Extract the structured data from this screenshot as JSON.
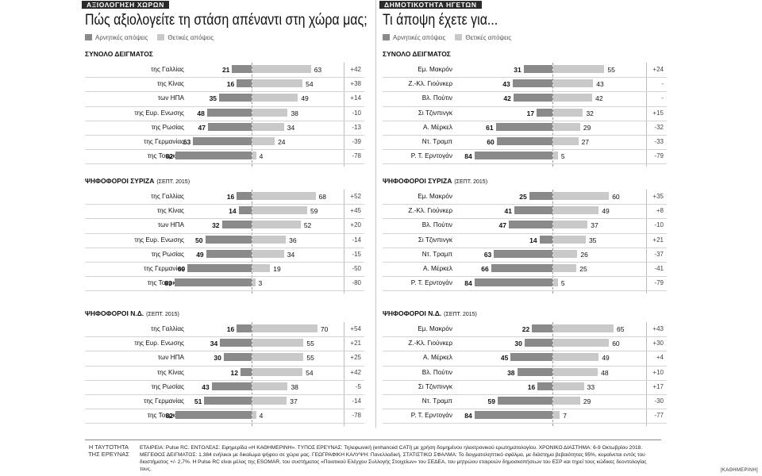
{
  "colors": {
    "negative": "#8a8a8a",
    "positive": "#c9c9c9"
  },
  "chart_data": [
    {
      "type": "bar",
      "section_tag": "ΑΞΙΟΛΟΓΗΣΗ ΧΩΡΩΝ",
      "title": "Πώς αξιολογείτε τη στάση απέναντι στη χώρα μας;",
      "legend": [
        "Αρνητικές απόψεις",
        "Θετικές απόψεις"
      ],
      "groups": [
        {
          "title": "ΣΥΝΟΛΟ ΔΕΙΓΜΑΤΟΣ",
          "note": "",
          "categories": [
            "της Γαλλίας",
            "της Κίνας",
            "των ΗΠΑ",
            "της Ευρ. Ενωσης",
            "της Ρωσίας",
            "της Γερμανίας",
            "της Τουρκίας"
          ],
          "negative": [
            21,
            16,
            35,
            48,
            47,
            63,
            82
          ],
          "positive": [
            63,
            54,
            49,
            38,
            34,
            24,
            4
          ],
          "diff": [
            "+42",
            "+38",
            "+14",
            "-10",
            "-13",
            "-39",
            "-78"
          ]
        },
        {
          "title": "ΨΗΦΟΦΟΡΟΙ ΣΥΡΙΖΑ",
          "note": "(ΣΕΠΤ. 2015)",
          "categories": [
            "της Γαλλίας",
            "της Κίνας",
            "των ΗΠΑ",
            "της Ευρ. Ενωσης",
            "της Ρωσίας",
            "της Γερμανίας",
            "της Τουρκίας"
          ],
          "negative": [
            16,
            14,
            32,
            50,
            49,
            69,
            83
          ],
          "positive": [
            68,
            59,
            52,
            36,
            34,
            19,
            3
          ],
          "diff": [
            "+52",
            "+45",
            "+20",
            "-14",
            "-15",
            "-50",
            "-80"
          ]
        },
        {
          "title": "ΨΗΦΟΦΟΡΟΙ Ν.Δ.",
          "note": "(ΣΕΠΤ. 2015)",
          "categories": [
            "της Γαλλίας",
            "της Ευρ. Ενωσης",
            "των ΗΠΑ",
            "της Κίνας",
            "της Ρωσίας",
            "της Γερμανίας",
            "της Τουρκίας"
          ],
          "negative": [
            16,
            34,
            30,
            12,
            43,
            51,
            82
          ],
          "positive": [
            70,
            55,
            55,
            54,
            38,
            37,
            4
          ],
          "diff": [
            "+54",
            "+21",
            "+25",
            "+42",
            "-5",
            "-14",
            "-78"
          ]
        }
      ]
    },
    {
      "type": "bar",
      "section_tag": "ΔΗΜΟΤΙΚΟΤΗΤΑ ΗΓΕΤΩΝ",
      "title": "Τι άποψη έχετε για...",
      "legend": [
        "Αρνητικές απόψεις",
        "Θετικές απόψεις"
      ],
      "groups": [
        {
          "title": "ΣΥΝΟΛΟ ΔΕΙΓΜΑΤΟΣ",
          "note": "",
          "categories": [
            "Εμ. Μακρόν",
            "Ζ.-Κλ. Γιούνκερ",
            "Βλ. Πούτιν",
            "Σι Τζινπινγκ",
            "Α. Μέρκελ",
            "Ντ. Τραμπ",
            "Ρ. Τ. Ερντογάν"
          ],
          "negative": [
            31,
            43,
            42,
            17,
            61,
            60,
            84
          ],
          "positive": [
            55,
            43,
            42,
            32,
            29,
            27,
            5
          ],
          "diff": [
            "+24",
            "-",
            "-",
            "+15",
            "-32",
            "-33",
            "-79"
          ]
        },
        {
          "title": "ΨΗΦΟΦΟΡΟΙ ΣΥΡΙΖΑ",
          "note": "(ΣΕΠΤ. 2015)",
          "categories": [
            "Εμ. Μακρόν",
            "Ζ.-Κλ. Γιούνκερ",
            "Βλ. Πούτιν",
            "Σι Τζινπινγκ",
            "Ντ. Τραμπ",
            "Α. Μέρκελ",
            "Ρ. Τ. Ερντογάν"
          ],
          "negative": [
            25,
            41,
            47,
            14,
            63,
            66,
            84
          ],
          "positive": [
            60,
            49,
            37,
            35,
            26,
            25,
            5
          ],
          "diff": [
            "+35",
            "+8",
            "-10",
            "+21",
            "-37",
            "-41",
            "-79"
          ]
        },
        {
          "title": "ΨΗΦΟΦΟΡΟΙ Ν.Δ.",
          "note": "(ΣΕΠΤ. 2015)",
          "categories": [
            "Εμ. Μακρόν",
            "Ζ.-Κλ. Γιούνκερ",
            "Α. Μέρκελ",
            "Βλ. Πούτιν",
            "Σι Τζινπινγκ",
            "Ντ. Τραμπ",
            "Ρ. Τ. Ερντογάν"
          ],
          "negative": [
            22,
            30,
            45,
            38,
            16,
            59,
            84
          ],
          "positive": [
            65,
            60,
            49,
            48,
            33,
            29,
            7
          ],
          "diff": [
            "+43",
            "+30",
            "+4",
            "+10",
            "+17",
            "-30",
            "-77"
          ]
        }
      ]
    }
  ],
  "footer": {
    "tag": "Η ΤΑΥΤΟΤΗΤΑ ΤΗΣ ΕΡΕΥΝΑΣ",
    "text": "ΕΤΑΙΡΕΙΑ: Pulse RC. ΕΝΤΟΛΕΑΣ: Εφημερίδα «Η ΚΑΘΗΜΕΡΙΝΗ». ΤΥΠΟΣ ΕΡΕΥΝΑΣ: Τηλεφωνική (enhanced CATI) με χρήση δομημένου ηλεκτρονικού ερωτηματολογίου. ΧΡΟΝΙΚΟ ΔΙΑΣΤΗΜΑ: 6-9 Οκτωβρίου 2018. ΜΕΓΕΘΟΣ ΔΕΙΓΜΑΤΟΣ: 1.384 ενήλικοι με δικαίωμα ψήφου σε χώρα μας. ΓΕΩΓΡΑΦΙΚΗ ΚΑΛΥΨΗ: Πανελλαδική. ΣΤΑΤΙΣΤΙΚΟ ΣΦΑΛΜΑ: Το δειγματοληπτικό σφάλμα, με διάστημα βεβαιότητας 95%, κυμαίνεται εντός του διαστήματος +/- 2,7%. Η Pulse RC είναι μέλος της ESOMAR, του συστήματος «Ποιοτικού Ελέγχου Συλλογής Στοιχείων» του ΣΕΔΕΑ, του μητρώου εταιρειών δημοσκοπήσεων του ΕΣΡ και τηρεί τους κώδικες δεοντολογίας τους.",
    "credit": "[ΚΑΘΗΜΕΡΙΝΗ]"
  }
}
